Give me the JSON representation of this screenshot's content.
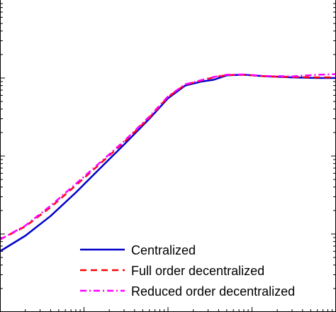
{
  "chart_data": {
    "type": "line",
    "xscale": "log",
    "yscale": "log",
    "xlim": [
      0.01,
      100
    ],
    "ylim": [
      0.001,
      10
    ],
    "grid": false,
    "legend_position": "bottom-right",
    "title": "",
    "xlabel": "",
    "ylabel": "",
    "series": [
      {
        "name": "Centralized",
        "color": "#0000cc",
        "style": "solid",
        "x": [
          0.01,
          0.02,
          0.04,
          0.08,
          0.15,
          0.3,
          0.6,
          1.0,
          1.6,
          2.5,
          3.5,
          5.0,
          8.0,
          15,
          30,
          60,
          100
        ],
        "y": [
          0.006,
          0.0095,
          0.017,
          0.034,
          0.067,
          0.14,
          0.3,
          0.55,
          0.8,
          0.9,
          0.95,
          1.08,
          1.1,
          1.05,
          1.02,
          1.0,
          1.0
        ]
      },
      {
        "name": "Full order decentralized",
        "color": "#ff0000",
        "style": "dashed",
        "x": [
          0.01,
          0.02,
          0.04,
          0.08,
          0.15,
          0.3,
          0.6,
          1.0,
          1.6,
          2.5,
          3.5,
          5.0,
          8.0,
          15,
          30,
          60,
          100
        ],
        "y": [
          0.0085,
          0.0125,
          0.022,
          0.042,
          0.077,
          0.15,
          0.31,
          0.57,
          0.82,
          0.93,
          1.02,
          1.09,
          1.1,
          1.05,
          1.03,
          1.02,
          1.02
        ]
      },
      {
        "name": "Reduced order decentralized",
        "color": "#ff00ff",
        "style": "dashdot",
        "x": [
          0.01,
          0.02,
          0.04,
          0.08,
          0.15,
          0.3,
          0.6,
          1.0,
          1.6,
          2.5,
          3.5,
          5.0,
          8.0,
          15,
          30,
          60,
          100
        ],
        "y": [
          0.0085,
          0.0128,
          0.023,
          0.044,
          0.08,
          0.155,
          0.32,
          0.58,
          0.83,
          0.94,
          1.03,
          1.1,
          1.11,
          1.06,
          1.05,
          1.1,
          1.12
        ]
      }
    ]
  }
}
